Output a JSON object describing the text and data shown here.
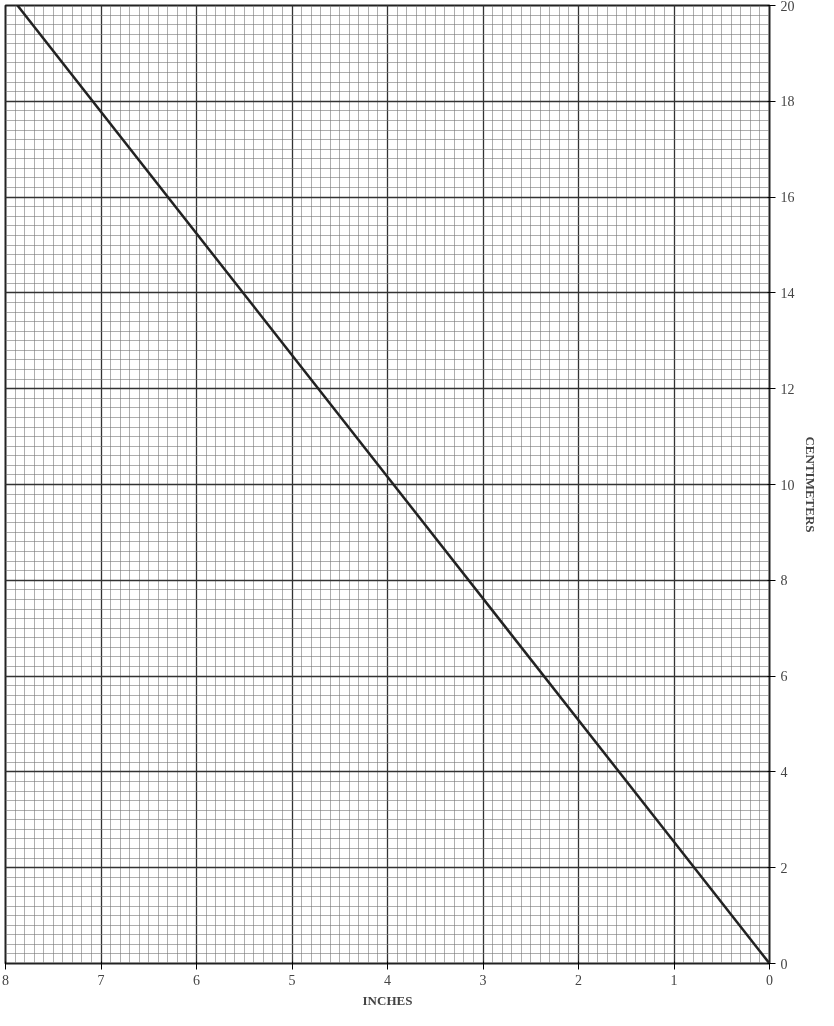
{
  "chart_data": {
    "type": "line",
    "xlabel": "INCHES",
    "ylabel": "CENTIMETERS",
    "x": [
      0,
      7.874
    ],
    "series": [
      {
        "color": "#222222",
        "values": [
          0,
          20
        ]
      }
    ],
    "xlim": [
      8,
      0
    ],
    "ylim": [
      0,
      20
    ],
    "xticks": [
      0,
      1,
      2,
      3,
      4,
      5,
      6,
      7,
      8
    ],
    "yticks": [
      {
        "value": 0,
        "label": "0"
      },
      {
        "value": 2,
        "label": "2"
      },
      {
        "value": 4,
        "label": "4"
      },
      {
        "value": 6,
        "label": "6"
      },
      {
        "value": 8,
        "label": "8"
      },
      {
        "value": 10,
        "label": "10"
      },
      {
        "value": 12,
        "label": "12"
      },
      {
        "value": 14,
        "label": "14"
      },
      {
        "value": 16,
        "label": "16"
      },
      {
        "value": 18,
        "label": "18"
      },
      {
        "value": 20,
        "label": "20"
      }
    ],
    "grid": true,
    "marker": "none",
    "line_style": "solid"
  }
}
